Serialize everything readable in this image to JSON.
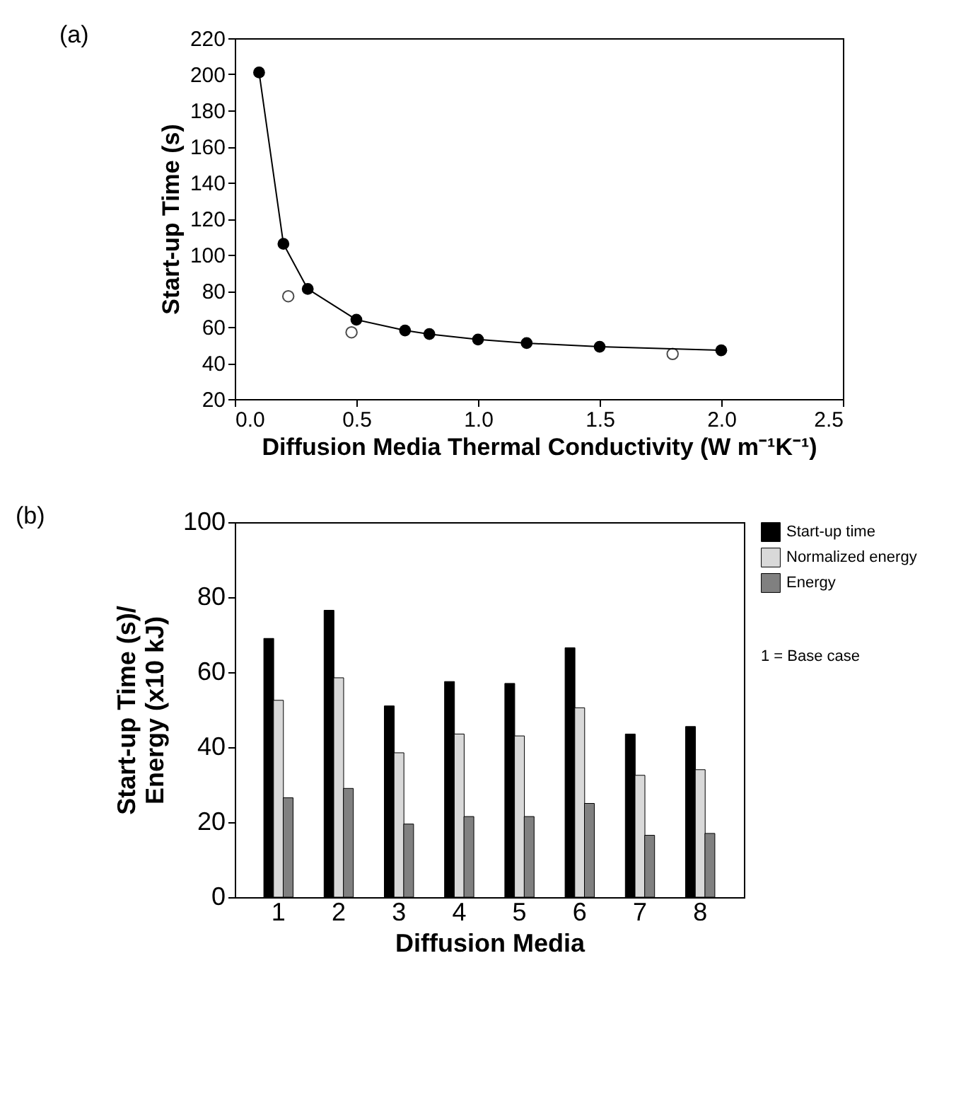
{
  "chart_data": [
    {
      "type": "line",
      "title": "(a)",
      "xlabel": "Diffusion Media Thermal Conductivity (W m⁻¹K⁻¹)",
      "ylabel": "Start-up Time (s)",
      "xlim": [
        0,
        2.5
      ],
      "xticks": [
        {
          "value": 0,
          "label": "0.0"
        },
        0.5,
        {
          "value": 1,
          "label": "1.0"
        },
        1.5,
        {
          "value": 2,
          "label": "2.0"
        },
        2.5
      ],
      "ylim": [
        20,
        220
      ],
      "yticks": [
        20,
        40,
        60,
        80,
        100,
        120,
        140,
        160,
        180,
        200,
        220
      ],
      "marker": "circle",
      "series": [
        {
          "type": "line",
          "color": "#000000",
          "x": [
            0.1,
            0.2,
            0.3,
            0.5,
            0.7,
            0.8,
            1.0,
            1.2,
            1.5,
            2.0
          ],
          "values": [
            201,
            106,
            81,
            64,
            58,
            56,
            53,
            51,
            49,
            47
          ]
        },
        {
          "type": "scatter",
          "color": "#000000",
          "x": [
            0.22,
            0.48,
            1.8
          ],
          "values": [
            77,
            57,
            45
          ]
        }
      ]
    },
    {
      "type": "bar",
      "title": "(b)",
      "xlabel": "Diffusion Media",
      "ylabel": "Start-up Time (s)/\nEnergy (x10 kJ)",
      "categories": [
        "1",
        "2",
        "3",
        "4",
        "5",
        "6",
        "7",
        "8"
      ],
      "ylim": [
        0,
        100
      ],
      "yticks": [
        0,
        20,
        40,
        60,
        80,
        100
      ],
      "legend": "top right",
      "annotations": [
        "1 = Base case"
      ],
      "series": [
        {
          "name": "Start-up time",
          "color": "#000000",
          "values": [
            69,
            76.5,
            51,
            57.5,
            57,
            66.5,
            43.5,
            45.5
          ]
        },
        {
          "name": "Normalized energy",
          "color": "#d9d9d9",
          "values": [
            52.5,
            58.5,
            38.5,
            43.5,
            43,
            50.5,
            32.5,
            34
          ]
        },
        {
          "name": "Energy",
          "color": "#808080",
          "values": [
            26.5,
            29,
            19.5,
            21.5,
            21.5,
            25,
            16.5,
            17
          ]
        }
      ]
    }
  ]
}
